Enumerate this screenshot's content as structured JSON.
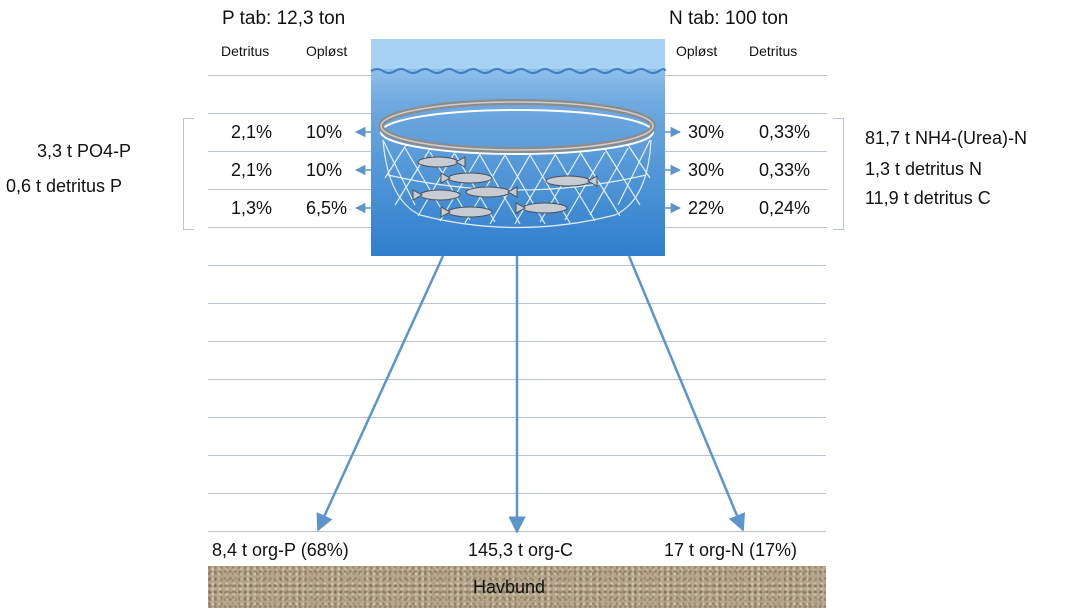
{
  "p_header": "P tab: 12,3 ton",
  "n_header": "N tab: 100 ton",
  "left_columns": [
    "Detritus",
    "Opløst"
  ],
  "right_columns": [
    "Opløst",
    "Detritus"
  ],
  "left_rows": [
    {
      "detritus": "2,1%",
      "oploest": "10%"
    },
    {
      "detritus": "2,1%",
      "oploest": "10%"
    },
    {
      "detritus": "1,3%",
      "oploest": "6,5%"
    }
  ],
  "right_rows": [
    {
      "oploest": "30%",
      "detritus": "0,33%"
    },
    {
      "oploest": "30%",
      "detritus": "0,33%"
    },
    {
      "oploest": "22%",
      "detritus": "0,24%"
    }
  ],
  "left_summary": [
    "3,3 t PO4-P",
    "0,6 t detritus P"
  ],
  "right_summary": [
    "81,7 t NH4-(Urea)-N",
    "1,3 t detritus N",
    "11,9 t detritus C"
  ],
  "bottom_labels": {
    "org_p": "8,4 t org-P (68%)",
    "org_c": "145,3 t org-C",
    "org_n": "17 t org-N (17%)"
  },
  "seabed_label": "Havbund",
  "colors": {
    "arrow": "#5b95cc",
    "water_top": "#a8d2f3",
    "water_bottom": "#2f7fcd",
    "net": "#ffffff",
    "ring": "#8c8c8c",
    "seabed": "#b5a58a",
    "grid_line": "#b9c3d3"
  }
}
